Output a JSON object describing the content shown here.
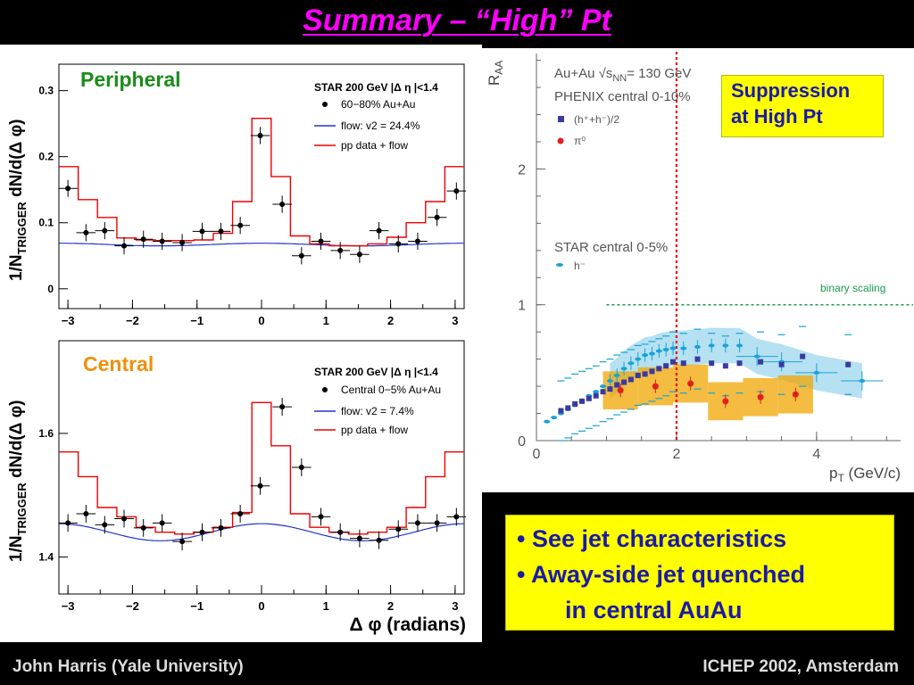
{
  "slide": {
    "title": "Summary – “High” Pt",
    "footer_left": "John Harris (Yale University)",
    "footer_right": "ICHEP 2002, Amsterdam",
    "suppression_box": {
      "line1": "Suppression",
      "line2": "at High Pt"
    },
    "bullets": {
      "line1": "• See jet characteristics",
      "line2": "• Away-side jet quenched",
      "line3": "in central AuAu"
    }
  },
  "panels": {
    "peripheral": {
      "label": "Peripheral",
      "legend_title": "STAR 200 GeV |Δ η |<1.4",
      "legend_data": "60−80% Au+Au",
      "legend_flow": "flow: v2 = 24.4%",
      "legend_pp": "pp data + flow",
      "ylabel_main": "1/N",
      "ylabel_sub": "TRIGGER",
      "ylabel_tail": " dN/d(Δ φ)",
      "yticks": [
        "0.3",
        "0.2",
        "0.1",
        "0"
      ],
      "xticks": [
        "−3",
        "−2",
        "−1",
        "0",
        "1",
        "2",
        "3"
      ]
    },
    "central": {
      "label": "Central",
      "legend_title": "STAR 200 GeV |Δ η |<1.4",
      "legend_data": "Central 0−5% Au+Au",
      "legend_flow": "flow: v2 = 7.4%",
      "legend_pp": "pp data + flow",
      "ylabel_main": "1/N",
      "ylabel_sub": "TRIGGER",
      "ylabel_tail": " dN/d(Δ φ)",
      "yticks": [
        "1.6",
        "1.4"
      ],
      "xticks": [
        "−3",
        "−2",
        "−1",
        "0",
        "1",
        "2",
        "3"
      ],
      "xlabel": "Δ φ (radians)"
    },
    "raa": {
      "ylabel_main": "R",
      "ylabel_sub": "AA",
      "xlabel_main": "p",
      "xlabel_sub": "T",
      "xlabel_tail": " (GeV/c)",
      "legend1": "Au+Au √s",
      "legend1_sub": "NN",
      "legend1_tail": "= 130 GeV",
      "legend2": "PHENIX central 0-10%",
      "legend3": "(h⁺+h⁻)/2",
      "legend4": "π⁰",
      "legend5": "STAR central 0-5%",
      "legend6": "h⁻",
      "binary": "binary scaling",
      "yticks": [
        "2",
        "1",
        "0"
      ],
      "xticks": [
        "0",
        "2",
        "4"
      ]
    }
  },
  "chart_data": [
    {
      "type": "scatter",
      "name_ref": "peripheral",
      "xlim": [
        -3.14,
        3.14
      ],
      "ylim": [
        -0.03,
        0.34
      ],
      "x": [
        -3.0,
        -2.72,
        -2.43,
        -2.13,
        -1.83,
        -1.54,
        -1.23,
        -0.92,
        -0.63,
        -0.33,
        -0.02,
        0.32,
        0.62,
        0.92,
        1.22,
        1.52,
        1.82,
        2.12,
        2.42,
        2.72,
        3.02
      ],
      "y": [
        0.152,
        0.085,
        0.088,
        0.065,
        0.075,
        0.072,
        0.07,
        0.087,
        0.087,
        0.096,
        0.232,
        0.128,
        0.05,
        0.072,
        0.058,
        0.052,
        0.088,
        0.068,
        0.072,
        0.108,
        0.148
      ],
      "flow_v2": 0.244,
      "flow_b": 0.067,
      "pp_plus_flow": [
        0.185,
        0.135,
        0.108,
        0.077,
        0.074,
        0.073,
        0.073,
        0.074,
        0.084,
        0.132,
        0.258,
        0.17,
        0.08,
        0.068,
        0.065,
        0.065,
        0.068,
        0.078,
        0.1,
        0.132,
        0.185
      ]
    },
    {
      "type": "scatter",
      "name_ref": "central",
      "xlim": [
        -3.14,
        3.14
      ],
      "ylim": [
        1.34,
        1.75
      ],
      "x": [
        -3.0,
        -2.72,
        -2.43,
        -2.13,
        -1.83,
        -1.54,
        -1.23,
        -0.92,
        -0.63,
        -0.33,
        -0.02,
        0.32,
        0.62,
        0.92,
        1.22,
        1.52,
        1.82,
        2.12,
        2.42,
        2.72,
        3.02
      ],
      "y": [
        1.455,
        1.47,
        1.452,
        1.462,
        1.447,
        1.455,
        1.425,
        1.44,
        1.447,
        1.47,
        1.515,
        1.643,
        1.545,
        1.465,
        1.44,
        1.43,
        1.427,
        1.445,
        1.455,
        1.455,
        1.465
      ],
      "flow_v2": 0.074,
      "flow_b": 1.44,
      "pp_plus_flow": [
        1.57,
        1.53,
        1.48,
        1.465,
        1.448,
        1.44,
        1.437,
        1.44,
        1.448,
        1.472,
        1.65,
        1.58,
        1.47,
        1.448,
        1.44,
        1.437,
        1.44,
        1.448,
        1.48,
        1.53,
        1.57
      ]
    },
    {
      "type": "scatter",
      "name_ref": "raa",
      "xlim": [
        0,
        5.2
      ],
      "ylim": [
        0,
        2.85
      ],
      "phenix_charged": {
        "x": [
          0.35,
          0.45,
          0.55,
          0.65,
          0.75,
          0.85,
          0.95,
          1.05,
          1.15,
          1.25,
          1.35,
          1.45,
          1.55,
          1.65,
          1.75,
          1.85,
          1.95,
          2.1,
          2.3,
          2.5,
          2.7,
          2.9,
          3.2,
          3.5,
          3.8,
          4.45
        ],
        "y": [
          0.22,
          0.24,
          0.27,
          0.29,
          0.31,
          0.33,
          0.36,
          0.38,
          0.41,
          0.43,
          0.45,
          0.48,
          0.49,
          0.51,
          0.53,
          0.55,
          0.58,
          0.57,
          0.6,
          0.57,
          0.55,
          0.57,
          0.58,
          0.56,
          0.62,
          0.56
        ]
      },
      "phenix_pi0": {
        "x": [
          1.2,
          1.7,
          2.2,
          2.7,
          3.2,
          3.7
        ],
        "y": [
          0.37,
          0.4,
          0.42,
          0.29,
          0.32,
          0.34
        ]
      },
      "star_hminus": {
        "x": [
          0.15,
          0.25,
          0.35,
          0.45,
          0.55,
          0.65,
          0.75,
          0.85,
          0.95,
          1.05,
          1.15,
          1.25,
          1.35,
          1.45,
          1.55,
          1.65,
          1.75,
          1.85,
          1.95,
          2.1,
          2.3,
          2.5,
          2.7,
          2.9,
          3.15,
          3.5,
          4.0,
          4.65
        ],
        "y": [
          0.14,
          0.17,
          0.2,
          0.23,
          0.26,
          0.29,
          0.33,
          0.36,
          0.4,
          0.44,
          0.48,
          0.53,
          0.57,
          0.6,
          0.63,
          0.64,
          0.66,
          0.67,
          0.68,
          0.68,
          0.69,
          0.7,
          0.7,
          0.7,
          0.62,
          0.58,
          0.5,
          0.44
        ]
      },
      "binary_scaling": 1.0,
      "reference_x": 2.0
    }
  ]
}
